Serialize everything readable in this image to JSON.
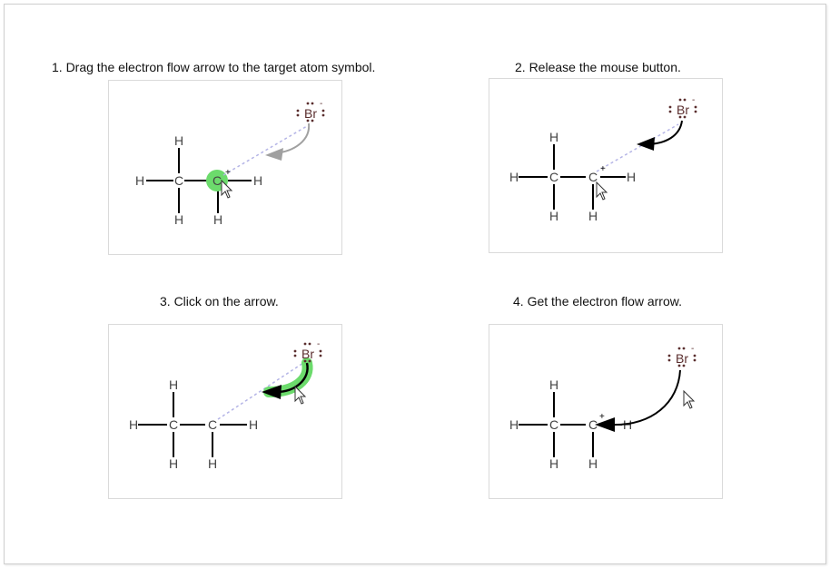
{
  "steps": [
    {
      "title": "1. Drag the electron flow arrow to the target atom symbol."
    },
    {
      "title": "2. Release the mouse button."
    },
    {
      "title": "3. Click on the arrow."
    },
    {
      "title": "4. Get the electron flow arrow."
    }
  ],
  "molecule": {
    "hydrogen": "H",
    "carbon": "C",
    "plus_charge": "+",
    "bromine": "Br",
    "minus_charge": "-"
  },
  "colors": {
    "highlight": "#6cdb6c",
    "arrow_gray": "#a0a0a0",
    "arrow_black": "#000000",
    "dashed_guide": "#b4b4e6",
    "bromine": "#5a2e2e",
    "bond": "#000000",
    "atom_label": "#444444"
  }
}
